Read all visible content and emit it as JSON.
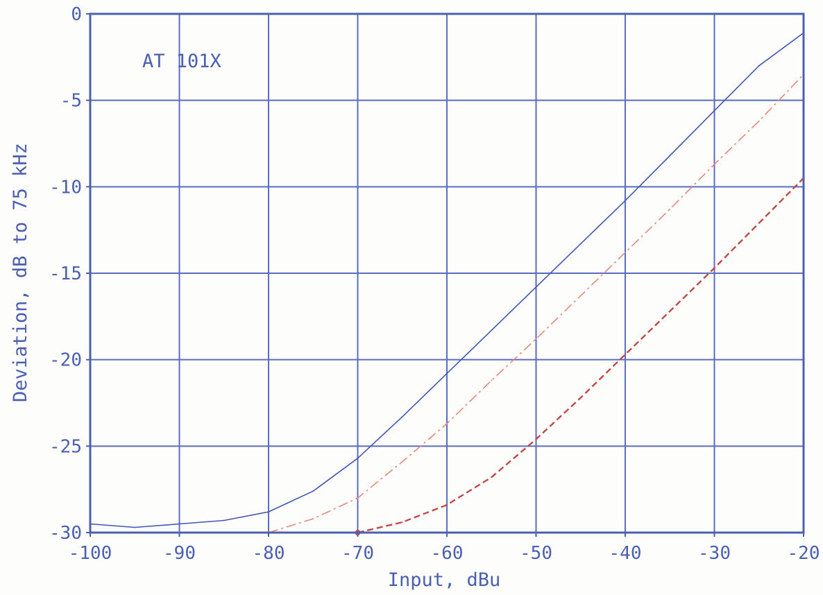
{
  "chart_data": {
    "type": "line",
    "title": "",
    "annotation": "AT 101X",
    "xlabel": "Input, dBu",
    "ylabel": "Deviation, dB to 75 kHz",
    "xlim": [
      -100,
      -20
    ],
    "ylim": [
      -30,
      0
    ],
    "x_ticks": [
      -100,
      -90,
      -80,
      -70,
      -60,
      -50,
      -40,
      -30,
      -20
    ],
    "x_tick_labels": [
      "-100",
      "-90",
      "-80",
      "-70",
      "-60",
      "-50",
      "-40",
      "-30",
      "-20"
    ],
    "y_ticks": [
      0,
      -5,
      -10,
      -15,
      -20,
      -25,
      -30
    ],
    "y_tick_labels": [
      "0",
      "-5",
      "-10",
      "-15",
      "-20",
      "-25",
      "-30"
    ],
    "grid": true,
    "legend": "none",
    "colors": {
      "axis": "#4a5fb0",
      "grid": "#5a6cc0",
      "text": "#4a5fb0"
    },
    "series": [
      {
        "style": "solid",
        "color": "#3f55b8",
        "points": [
          [
            -100,
            -29.5
          ],
          [
            -95,
            -29.7
          ],
          [
            -90,
            -29.5
          ],
          [
            -85,
            -29.3
          ],
          [
            -80,
            -28.8
          ],
          [
            -75,
            -27.6
          ],
          [
            -70,
            -25.7
          ],
          [
            -65,
            -23.3
          ],
          [
            -60,
            -20.8
          ],
          [
            -55,
            -18.3
          ],
          [
            -50,
            -15.8
          ],
          [
            -45,
            -13.3
          ],
          [
            -40,
            -10.8
          ],
          [
            -35,
            -8.2
          ],
          [
            -30,
            -5.6
          ],
          [
            -25,
            -3.0
          ],
          [
            -20,
            -1.1
          ]
        ]
      },
      {
        "style": "dashdot",
        "color": "#e58878",
        "points": [
          [
            -80,
            -30.0
          ],
          [
            -75,
            -29.2
          ],
          [
            -70,
            -28.0
          ],
          [
            -65,
            -25.9
          ],
          [
            -60,
            -23.7
          ],
          [
            -55,
            -21.2
          ],
          [
            -50,
            -18.8
          ],
          [
            -45,
            -16.3
          ],
          [
            -40,
            -13.8
          ],
          [
            -35,
            -11.3
          ],
          [
            -30,
            -8.7
          ],
          [
            -25,
            -6.2
          ],
          [
            -20,
            -3.5
          ]
        ]
      },
      {
        "style": "dashed",
        "color": "#c04848",
        "points": [
          [
            -70,
            -30.0
          ],
          [
            -65,
            -29.4
          ],
          [
            -60,
            -28.4
          ],
          [
            -55,
            -26.8
          ],
          [
            -50,
            -24.6
          ],
          [
            -45,
            -22.2
          ],
          [
            -40,
            -19.7
          ],
          [
            -35,
            -17.2
          ],
          [
            -30,
            -14.7
          ],
          [
            -25,
            -12.1
          ],
          [
            -20,
            -9.5
          ]
        ]
      }
    ]
  }
}
